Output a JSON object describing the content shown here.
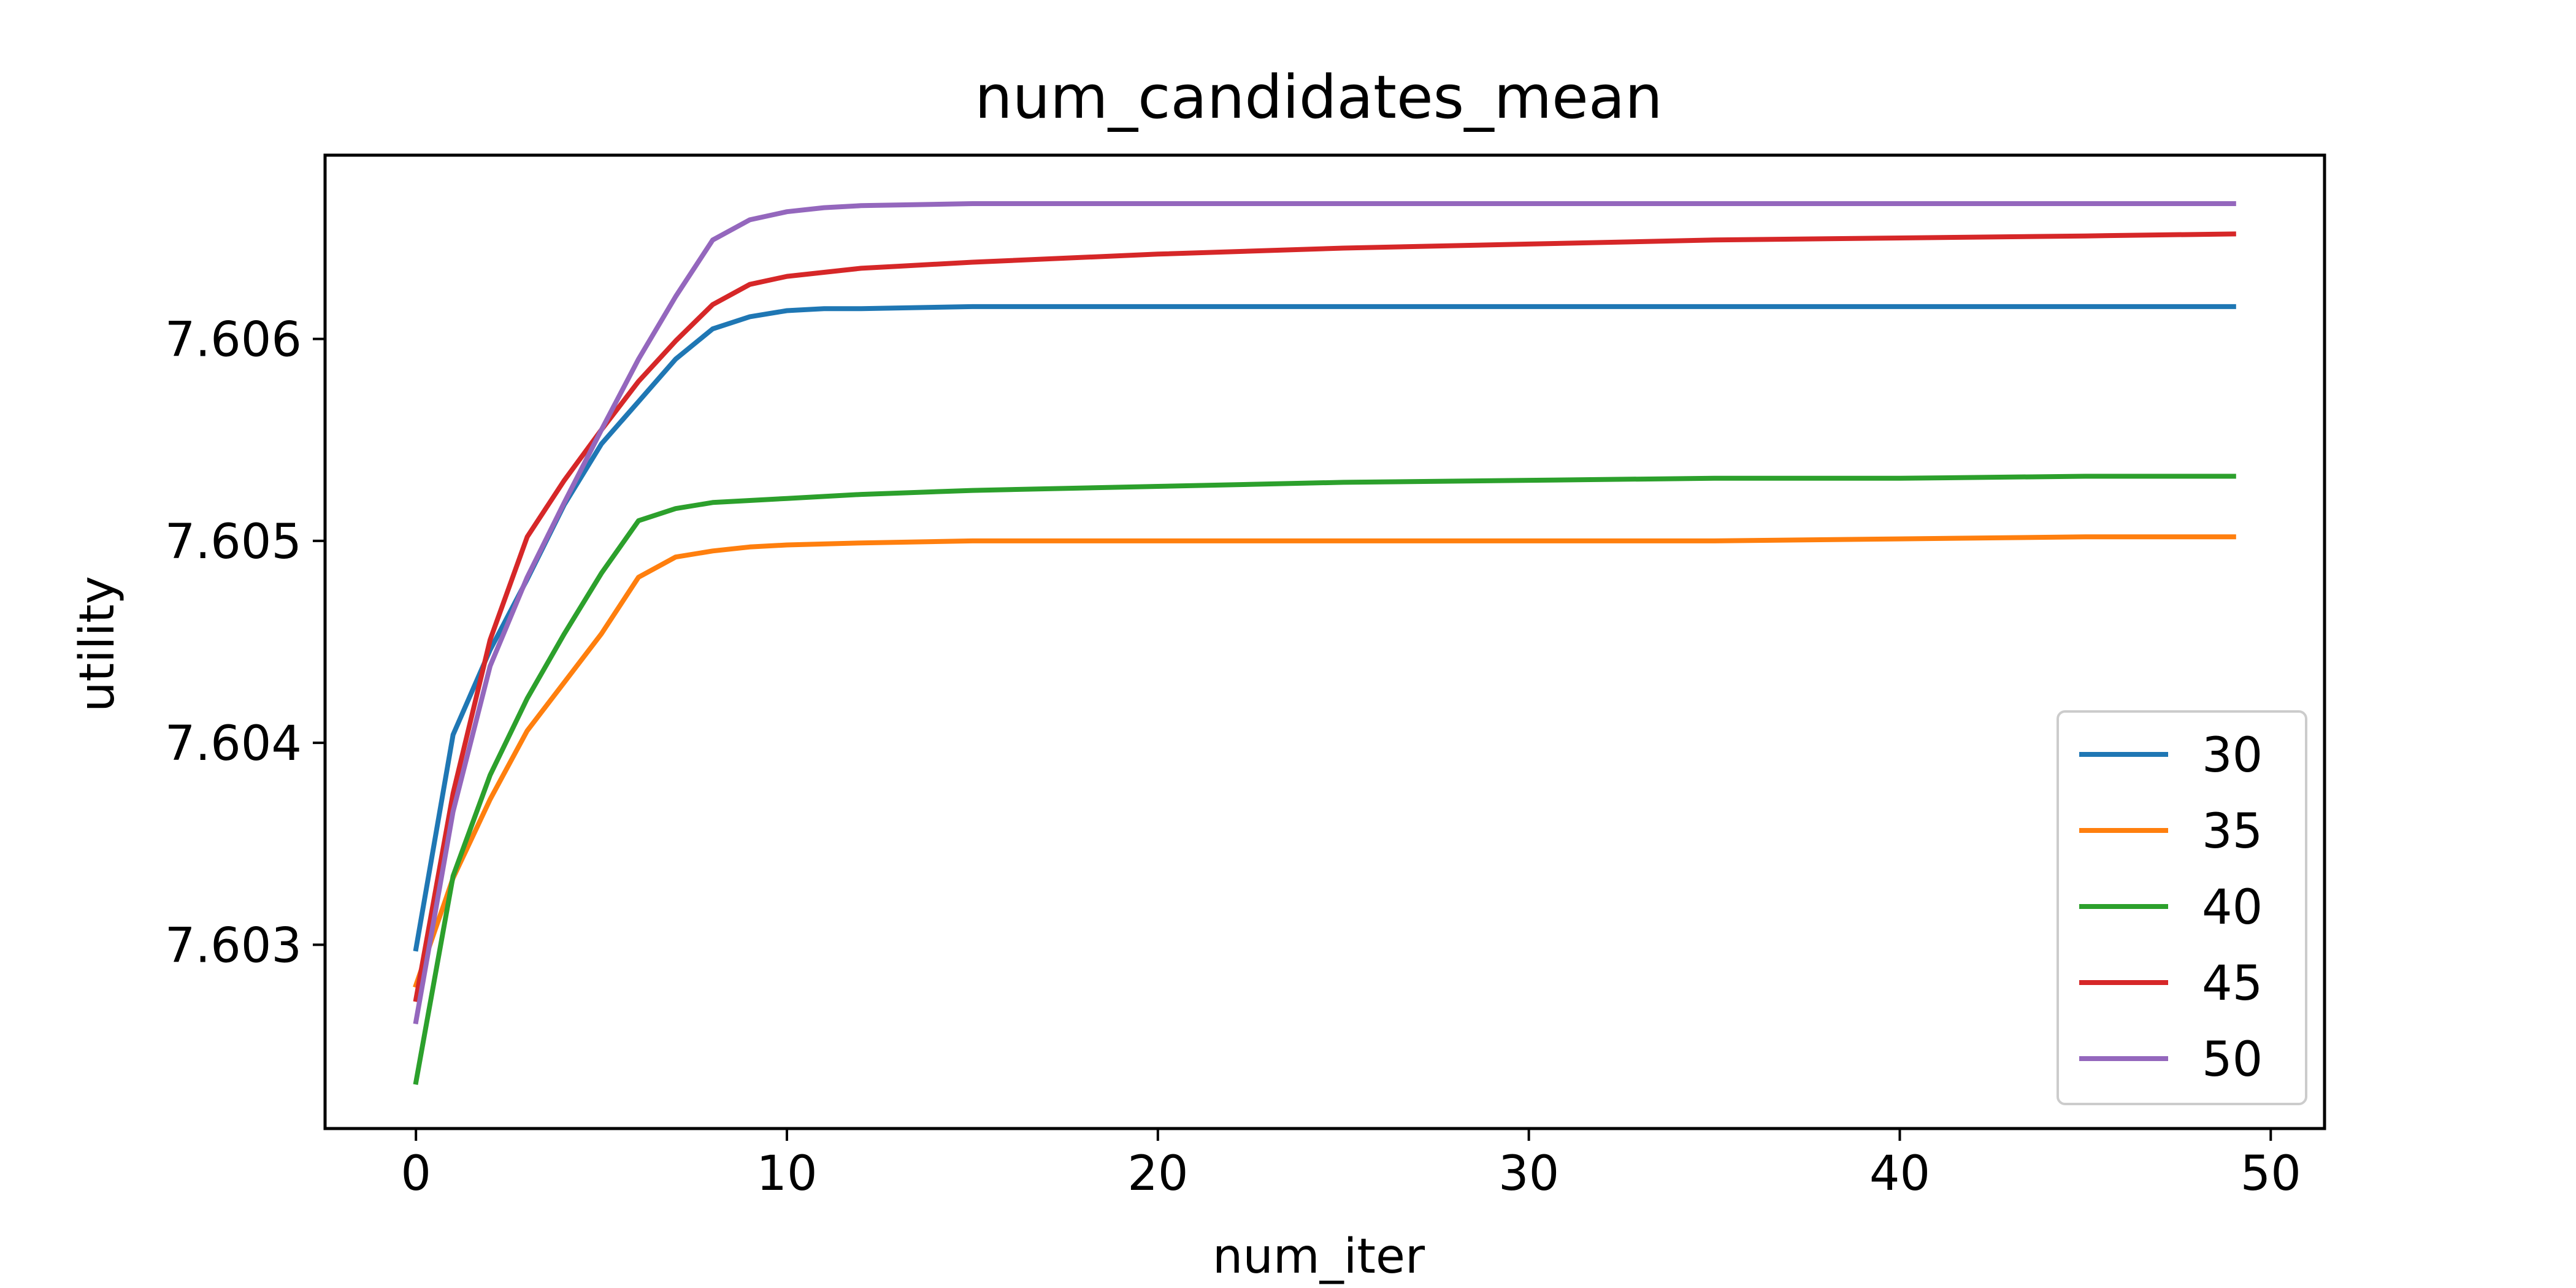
{
  "chart_data": {
    "type": "line",
    "title": "num_candidates_mean",
    "xlabel": "num_iter",
    "ylabel": "utility",
    "xlim": [
      -2.45,
      51.45
    ],
    "ylim": [
      7.60209,
      7.60691
    ],
    "xticks": [
      0,
      10,
      20,
      30,
      40,
      50
    ],
    "xtick_labels": [
      "0",
      "10",
      "20",
      "30",
      "40",
      "50"
    ],
    "yticks": [
      7.603,
      7.604,
      7.605,
      7.606
    ],
    "ytick_labels": [
      "7.603",
      "7.604",
      "7.605",
      "7.606"
    ],
    "grid": false,
    "legend_position": "lower-right",
    "series": [
      {
        "name": "30",
        "color": "#1f77b4",
        "x": [
          0,
          1,
          2,
          3,
          4,
          5,
          6,
          7,
          8,
          9,
          10,
          11,
          12,
          15,
          20,
          25,
          30,
          35,
          40,
          45,
          49
        ],
        "y": [
          7.60298,
          7.60404,
          7.60446,
          7.60481,
          7.60518,
          7.60548,
          7.60569,
          7.6059,
          7.60605,
          7.60611,
          7.60614,
          7.60615,
          7.60615,
          7.60616,
          7.60616,
          7.60616,
          7.60616,
          7.60616,
          7.60616,
          7.60616,
          7.60616
        ]
      },
      {
        "name": "35",
        "color": "#ff7f0e",
        "x": [
          0,
          1,
          2,
          3,
          4,
          5,
          6,
          7,
          8,
          9,
          10,
          12,
          15,
          20,
          25,
          30,
          35,
          40,
          45,
          49
        ],
        "y": [
          7.6028,
          7.60333,
          7.60372,
          7.60406,
          7.6043,
          7.60454,
          7.60482,
          7.60492,
          7.60495,
          7.60497,
          7.60498,
          7.60499,
          7.605,
          7.605,
          7.605,
          7.605,
          7.605,
          7.60501,
          7.60502,
          7.60502
        ]
      },
      {
        "name": "40",
        "color": "#2ca02c",
        "x": [
          0,
          1,
          2,
          3,
          4,
          5,
          6,
          7,
          8,
          9,
          10,
          12,
          15,
          20,
          25,
          30,
          35,
          40,
          45,
          49
        ],
        "y": [
          7.60232,
          7.60334,
          7.60384,
          7.60422,
          7.60454,
          7.60484,
          7.6051,
          7.60516,
          7.60519,
          7.6052,
          7.60521,
          7.60523,
          7.60525,
          7.60527,
          7.60529,
          7.6053,
          7.60531,
          7.60531,
          7.60532,
          7.60532
        ]
      },
      {
        "name": "45",
        "color": "#d62728",
        "x": [
          0,
          1,
          2,
          3,
          4,
          5,
          6,
          7,
          8,
          9,
          10,
          11,
          12,
          13,
          15,
          20,
          25,
          30,
          35,
          40,
          45,
          49
        ],
        "y": [
          7.60273,
          7.60375,
          7.60451,
          7.60502,
          7.6053,
          7.60555,
          7.60579,
          7.60599,
          7.60617,
          7.60627,
          7.60631,
          7.60633,
          7.60635,
          7.60636,
          7.60638,
          7.60642,
          7.60645,
          7.60647,
          7.60649,
          7.6065,
          7.60651,
          7.60652
        ]
      },
      {
        "name": "50",
        "color": "#9467bd",
        "x": [
          0,
          1,
          2,
          3,
          4,
          5,
          6,
          7,
          8,
          9,
          10,
          11,
          12,
          15,
          20,
          30,
          40,
          49
        ],
        "y": [
          7.60262,
          7.60366,
          7.60438,
          7.60482,
          7.60519,
          7.60555,
          7.6059,
          7.60621,
          7.60649,
          7.60659,
          7.60663,
          7.60665,
          7.60666,
          7.60667,
          7.60667,
          7.60667,
          7.60667,
          7.60667
        ]
      }
    ]
  }
}
